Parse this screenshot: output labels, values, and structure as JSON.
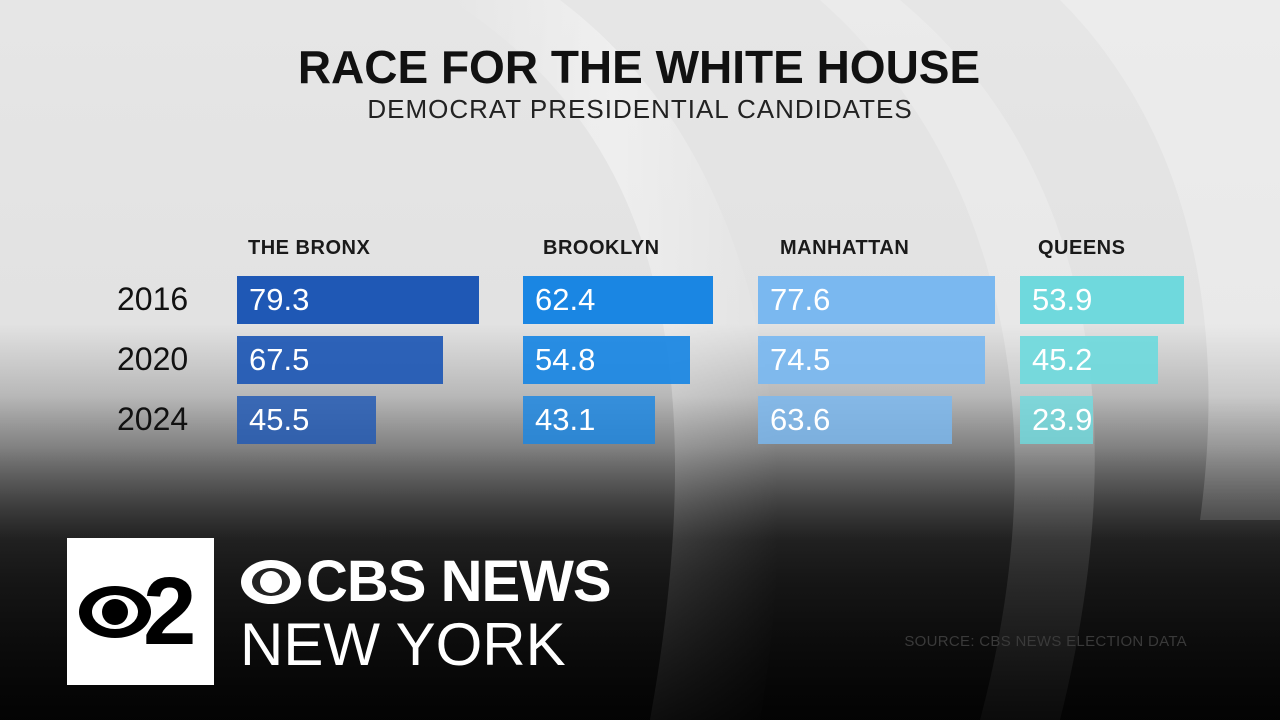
{
  "header": {
    "title": "RACE FOR THE WHITE HOUSE",
    "subtitle": "DEMOCRAT PRESIDENTIAL CANDIDATES"
  },
  "chart_data": {
    "type": "bar",
    "categories": [
      "2016",
      "2020",
      "2024"
    ],
    "series": [
      {
        "name": "THE BRONX",
        "values": [
          79.3,
          67.5,
          45.5
        ],
        "color": "#1f58b5",
        "value_labels": [
          "79.3",
          "67.5",
          "45.5"
        ]
      },
      {
        "name": "BROOKLYN",
        "values": [
          62.4,
          54.8,
          43.1
        ],
        "color": "#1a86e3",
        "value_labels": [
          "62.4",
          "54.8",
          "43.1"
        ]
      },
      {
        "name": "MANHATTAN",
        "values": [
          77.6,
          74.5,
          63.6
        ],
        "color": "#7ab8f0",
        "value_labels": [
          "77.6",
          "74.5",
          "63.6"
        ]
      },
      {
        "name": "QUEENS",
        "values": [
          53.9,
          45.2,
          23.9
        ],
        "color": "#6fd9dd",
        "value_labels": [
          "53.9",
          "45.2",
          "23.9"
        ]
      }
    ],
    "title": "RACE FOR THE WHITE HOUSE",
    "subtitle": "DEMOCRAT PRESIDENTIAL CANDIDATES",
    "xlabel": "",
    "ylabel": "",
    "grid": false,
    "legend": "column headers"
  },
  "source": "SOURCE: CBS NEWS ELECTION DATA",
  "branding": {
    "logo_number": "2",
    "line1": "CBS NEWS",
    "line2": "NEW YORK",
    "logo_icon": "cbs-eye-icon"
  }
}
